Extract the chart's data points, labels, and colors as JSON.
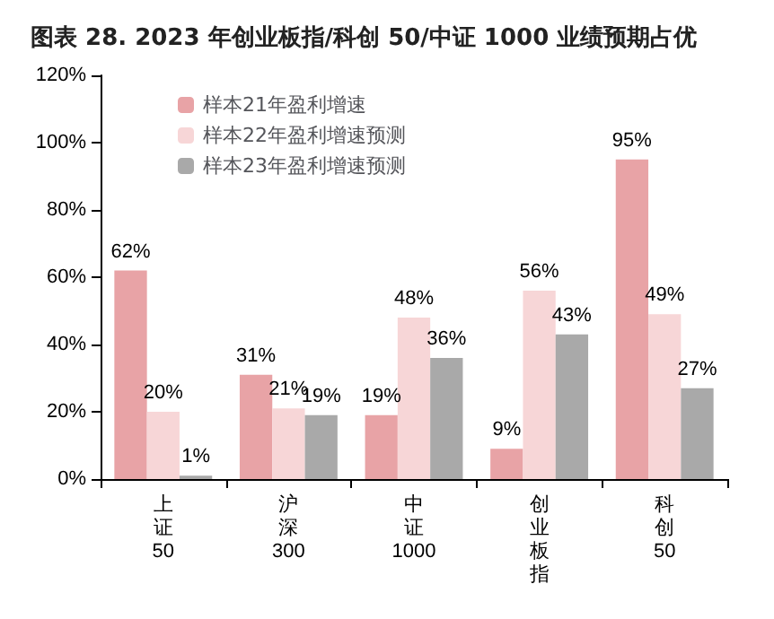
{
  "chart_data": {
    "type": "bar",
    "title": "图表 28. 2023 年创业板指/科创 50/中证 1000 业绩预期占优",
    "categories": [
      "上证50",
      "沪深300",
      "中证1000",
      "创业板指",
      "科创50"
    ],
    "series": [
      {
        "name": "样本21年盈利增速",
        "color": "#e8a3a6",
        "values": [
          62,
          31,
          19,
          9,
          95
        ],
        "value_labels": [
          "62%",
          "31%",
          "19%",
          "9%",
          "95%"
        ]
      },
      {
        "name": "样本22年盈利增速预测",
        "color": "#f7d6d7",
        "values": [
          20,
          21,
          48,
          56,
          49
        ],
        "value_labels": [
          "20%",
          "21%",
          "48%",
          "56%",
          "49%"
        ]
      },
      {
        "name": "样本23年盈利增速预测",
        "color": "#a9a9a9",
        "values": [
          1,
          19,
          36,
          43,
          27
        ],
        "value_labels": [
          "1%",
          "19%",
          "36%",
          "43%",
          "27%"
        ]
      }
    ],
    "ylim": [
      0,
      120
    ],
    "yticks": [
      {
        "value": 0,
        "label": "0%"
      },
      {
        "value": 20,
        "label": "20%"
      },
      {
        "value": 40,
        "label": "40%"
      },
      {
        "value": 60,
        "label": "60%"
      },
      {
        "value": 80,
        "label": "80%"
      },
      {
        "value": 100,
        "label": "100%"
      },
      {
        "value": 120,
        "label": "120%"
      }
    ],
    "grid": false,
    "legend": "top left"
  }
}
